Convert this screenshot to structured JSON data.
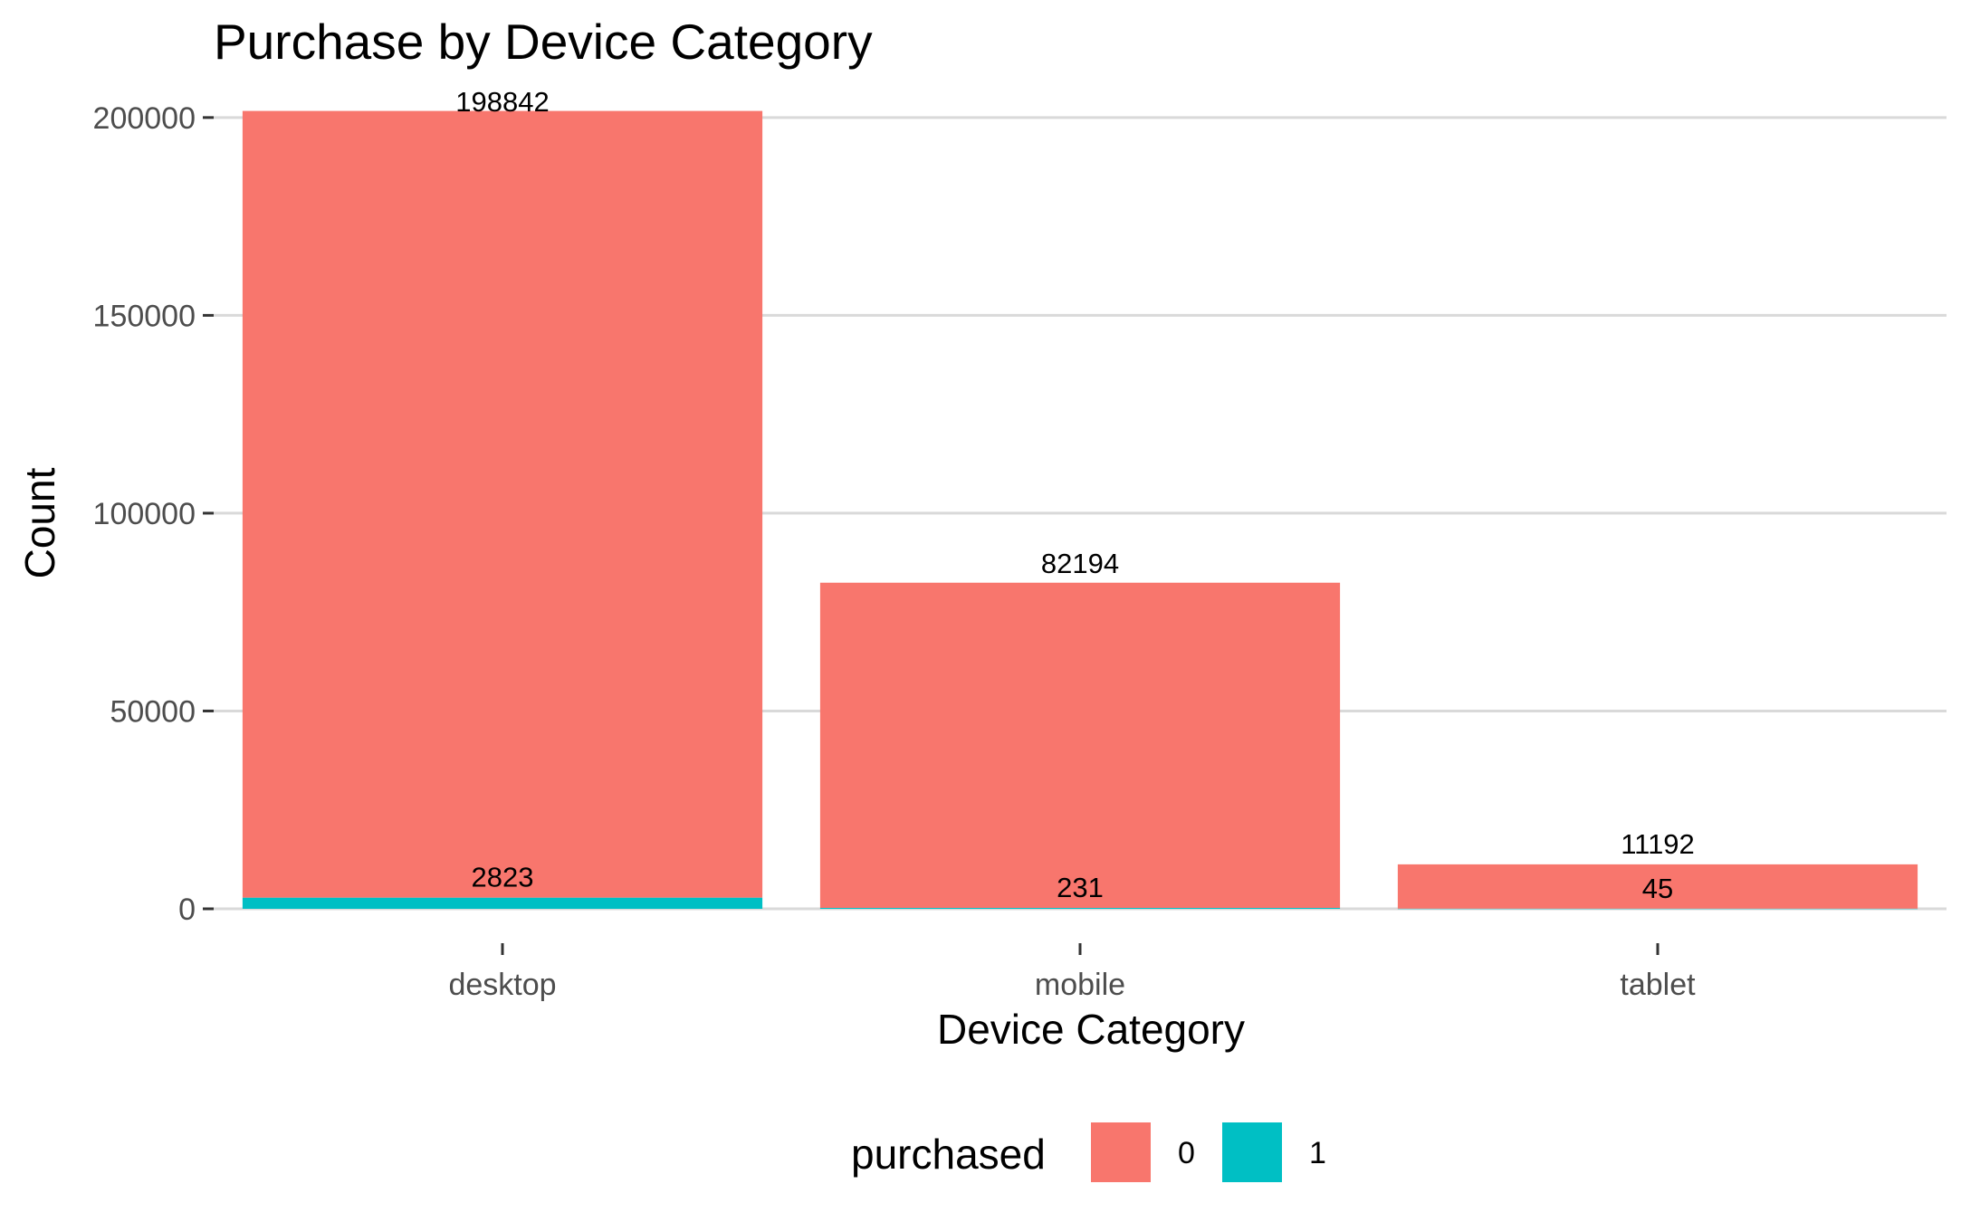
{
  "chart_data": {
    "type": "bar",
    "stacked": true,
    "title": "Purchase by Device Category",
    "xlabel": "Device Category",
    "ylabel": "Count",
    "categories": [
      "desktop",
      "mobile",
      "tablet"
    ],
    "series": [
      {
        "name": "0",
        "color": "#F8766D",
        "values": [
          198842,
          82194,
          11192
        ]
      },
      {
        "name": "1",
        "color": "#00BFC4",
        "values": [
          2823,
          231,
          45
        ]
      }
    ],
    "ylim": [
      0,
      205000
    ],
    "yticks": [
      0,
      50000,
      100000,
      150000,
      200000
    ],
    "ytick_labels": [
      "0",
      "50000",
      "100000",
      "150000",
      "200000"
    ],
    "grid": true,
    "legend": {
      "title": "purchased",
      "position": "bottom",
      "entries": [
        "0",
        "1"
      ]
    }
  }
}
